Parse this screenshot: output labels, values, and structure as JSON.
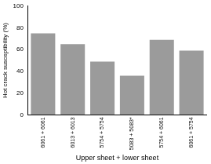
{
  "chart_data": {
    "type": "bar",
    "categories": [
      "6061 + 6061",
      "6013 + 6013",
      "5754 + 5754",
      "5083 + 5083*",
      "5754 + 6061",
      "6061 + 5754"
    ],
    "values": [
      75,
      65,
      49,
      36,
      69,
      59
    ],
    "color": "#9b9b9b",
    "x_label": "Upper sheet + lower sheet",
    "y_label": "Hot crack susceptibility (%)",
    "ylim": [
      0,
      100
    ],
    "yticks": [
      0,
      20,
      40,
      60,
      80,
      100
    ],
    "grid": false
  }
}
